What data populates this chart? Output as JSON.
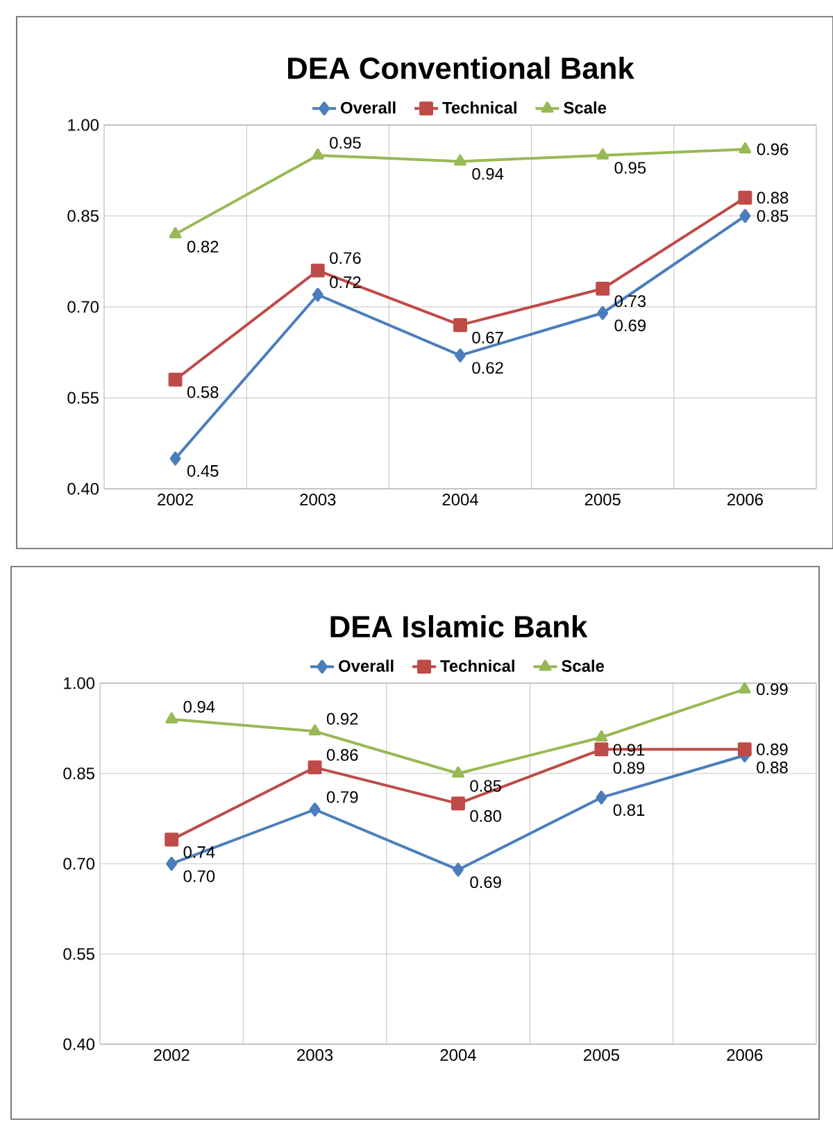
{
  "chart_data": [
    {
      "type": "line",
      "title": "DEA Conventional Bank",
      "categories": [
        "2002",
        "2003",
        "2004",
        "2005",
        "2006"
      ],
      "ylim": [
        0.4,
        1.0
      ],
      "yticks": [
        {
          "value": 0.4,
          "label": "0.40"
        },
        {
          "value": 0.55,
          "label": "0.55"
        },
        {
          "value": 0.7,
          "label": "0.70"
        },
        {
          "value": 0.85,
          "label": "0.85"
        },
        {
          "value": 1.0,
          "label": "1.00"
        }
      ],
      "grid": true,
      "legend": "top",
      "series": [
        {
          "name": "Overall",
          "color": "#4a7ebb",
          "marker": "diamond",
          "values": [
            0.45,
            0.72,
            0.62,
            0.69,
            0.85
          ],
          "value_labels": [
            "0.45",
            "0.72",
            "0.62",
            "0.69",
            "0.85"
          ]
        },
        {
          "name": "Technical",
          "color": "#be4b48",
          "marker": "square",
          "values": [
            0.58,
            0.76,
            0.67,
            0.73,
            0.88
          ],
          "value_labels": [
            "0.58",
            "0.76",
            "0.67",
            "0.73",
            "0.88"
          ]
        },
        {
          "name": "Scale",
          "color": "#98b954",
          "marker": "triangle",
          "values": [
            0.82,
            0.95,
            0.94,
            0.95,
            0.96
          ],
          "value_labels": [
            "0.82",
            "0.95",
            "0.94",
            "0.95",
            "0.96"
          ]
        }
      ]
    },
    {
      "type": "line",
      "title": "DEA Islamic Bank",
      "categories": [
        "2002",
        "2003",
        "2004",
        "2005",
        "2006"
      ],
      "ylim": [
        0.4,
        1.0
      ],
      "yticks": [
        {
          "value": 0.4,
          "label": "0.40"
        },
        {
          "value": 0.55,
          "label": "0.55"
        },
        {
          "value": 0.7,
          "label": "0.70"
        },
        {
          "value": 0.85,
          "label": "0.85"
        },
        {
          "value": 1.0,
          "label": "1.00"
        }
      ],
      "grid": true,
      "legend": "top",
      "series": [
        {
          "name": "Overall",
          "color": "#4a7ebb",
          "marker": "diamond",
          "values": [
            0.7,
            0.79,
            0.69,
            0.81,
            0.88
          ],
          "value_labels": [
            "0.70",
            "0.79",
            "0.69",
            "0.81",
            "0.88"
          ]
        },
        {
          "name": "Technical",
          "color": "#be4b48",
          "marker": "square",
          "values": [
            0.74,
            0.86,
            0.8,
            0.89,
            0.89
          ],
          "value_labels": [
            "0.74",
            "0.86",
            "0.80",
            "0.89",
            "0.89"
          ]
        },
        {
          "name": "Scale",
          "color": "#98b954",
          "marker": "triangle",
          "values": [
            0.94,
            0.92,
            0.85,
            0.91,
            0.99
          ],
          "value_labels": [
            "0.94",
            "0.92",
            "0.85",
            "0.91",
            "0.99"
          ]
        }
      ]
    }
  ]
}
